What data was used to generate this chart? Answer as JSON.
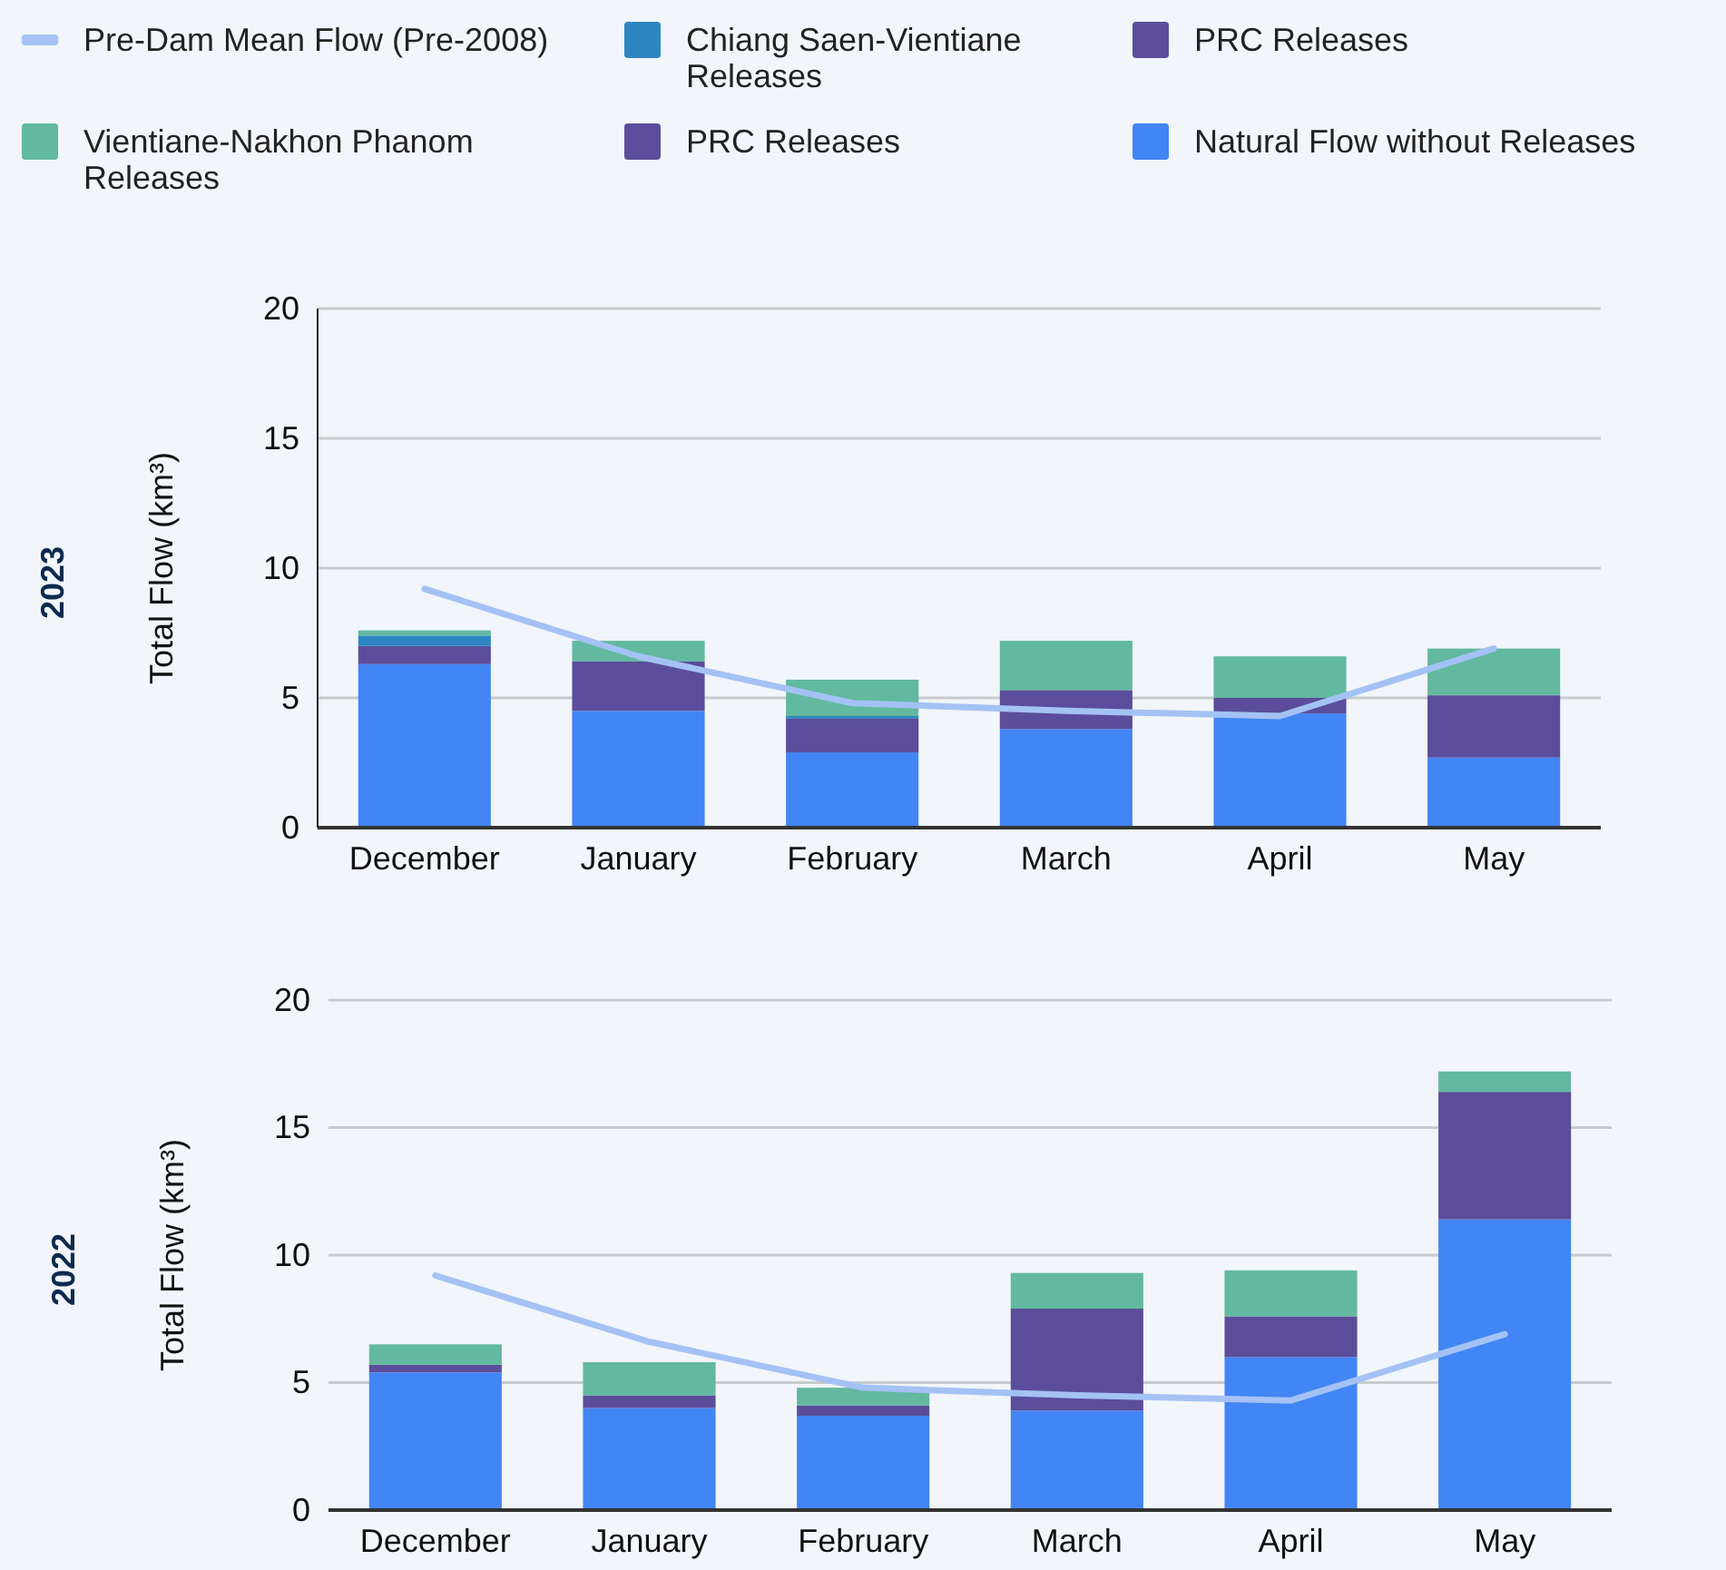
{
  "chart_data": [
    {
      "type": "bar",
      "title": "2023",
      "ylabel": "Total Flow (km³)",
      "categories": [
        "December",
        "January",
        "February",
        "March",
        "April",
        "May"
      ],
      "stacked": true,
      "ylim": [
        0,
        20
      ],
      "yticks": [
        0,
        5,
        10,
        15,
        20
      ],
      "grid": "y",
      "legend": "top",
      "series": [
        {
          "name": "Natural Flow without Releases",
          "color": "#4285f4",
          "values": [
            6.3,
            4.5,
            2.9,
            3.8,
            4.4,
            2.7
          ]
        },
        {
          "name": "PRC Releases",
          "color": "#5b4d9b",
          "values": [
            null,
            null,
            null,
            null,
            null,
            null
          ]
        },
        {
          "name": "PRC Releases",
          "color": "#5b4d9b",
          "values": [
            0.7,
            1.9,
            1.3,
            1.5,
            0.6,
            2.4
          ]
        },
        {
          "name": "Chiang Saen-Vientiane Releases",
          "color": "#2e86c1",
          "values": [
            0.4,
            null,
            0.1,
            null,
            null,
            null
          ]
        },
        {
          "name": "Vientiane-Nakhon Phanom Releases",
          "color": "#62b99f",
          "values": [
            0.2,
            0.8,
            1.4,
            1.9,
            1.6,
            1.8
          ]
        },
        {
          "name": "Pre-Dam Mean Flow (Pre-2008)",
          "type": "line",
          "color": "#a4c2f4",
          "values": [
            9.2,
            6.6,
            4.8,
            4.5,
            4.3,
            6.9
          ]
        }
      ]
    },
    {
      "type": "bar",
      "title": "2022",
      "ylabel": "Total Flow (km³)",
      "categories": [
        "December",
        "January",
        "February",
        "March",
        "April",
        "May"
      ],
      "stacked": true,
      "ylim": [
        0,
        20
      ],
      "yticks": [
        0,
        5,
        10,
        15,
        20
      ],
      "grid": "y",
      "series": [
        {
          "color": "#4285f4",
          "values": [
            5.4,
            4.0,
            3.7,
            3.9,
            6.0,
            11.4
          ]
        },
        {
          "color": "#5b4d9b",
          "values": [
            null,
            null,
            null,
            null,
            null,
            null
          ]
        },
        {
          "color": "#5b4d9b",
          "values": [
            0.3,
            0.5,
            0.4,
            4.0,
            1.6,
            5.0
          ]
        },
        {
          "color": "#2e86c1",
          "values": [
            null,
            null,
            null,
            null,
            null,
            null
          ]
        },
        {
          "color": "#62b99f",
          "values": [
            0.8,
            1.3,
            0.7,
            1.4,
            1.8,
            0.8
          ]
        },
        {
          "type": "line",
          "color": "#a4c2f4",
          "values": [
            9.2,
            6.6,
            4.8,
            4.5,
            4.3,
            6.9
          ]
        }
      ]
    }
  ]
}
